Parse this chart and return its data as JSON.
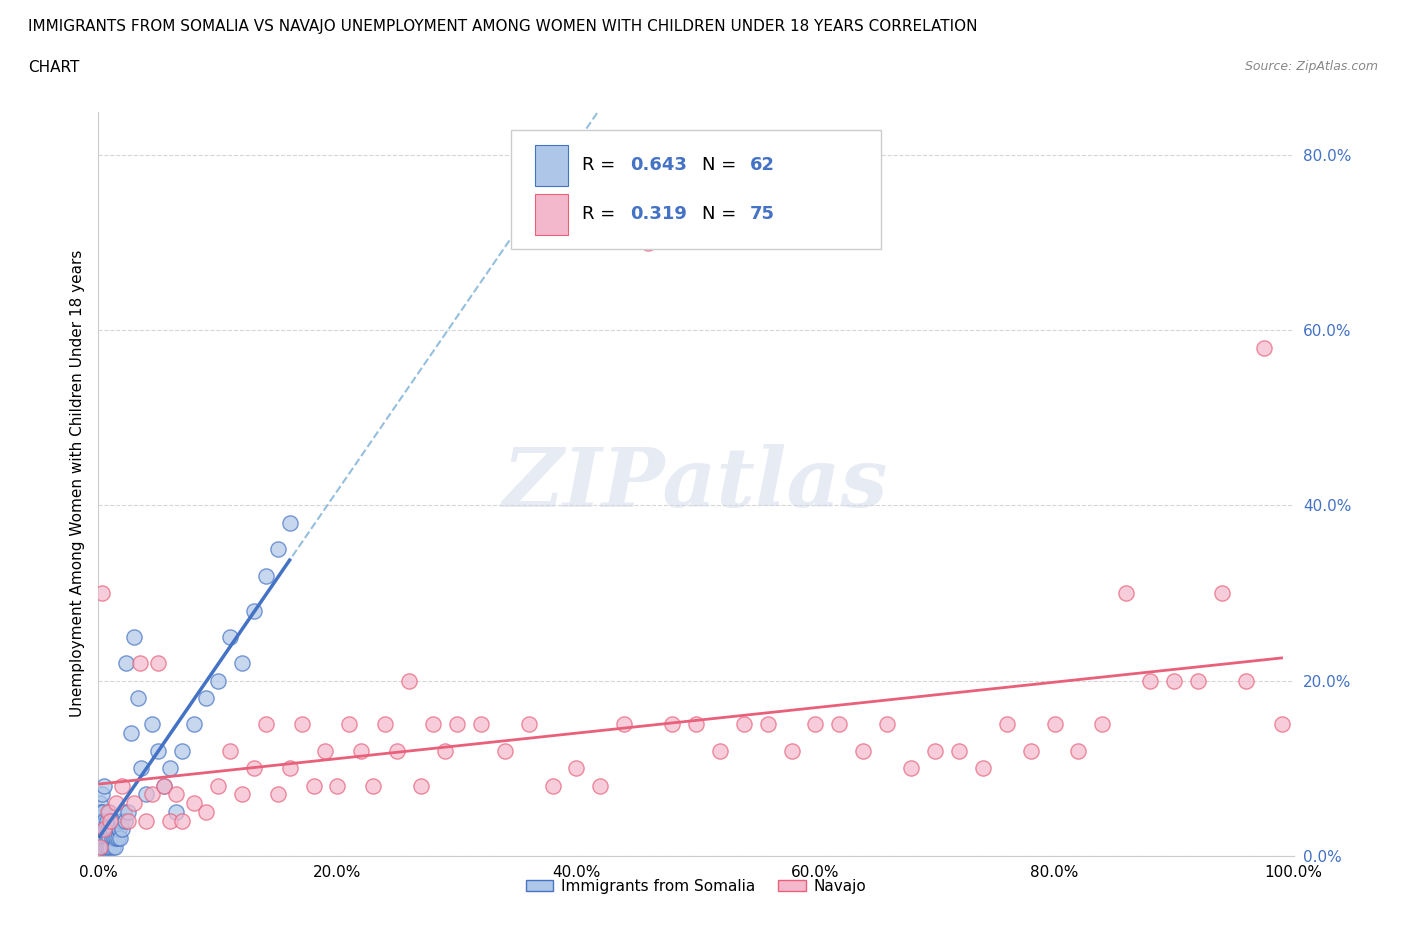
{
  "title_line1": "IMMIGRANTS FROM SOMALIA VS NAVAJO UNEMPLOYMENT AMONG WOMEN WITH CHILDREN UNDER 18 YEARS CORRELATION",
  "title_line2": "CHART",
  "source": "Source: ZipAtlas.com",
  "ylabel": "Unemployment Among Women with Children Under 18 years",
  "xlabel_somalia": "Immigrants from Somalia",
  "xlabel_navajo": "Navajo",
  "R_somalia": 0.643,
  "N_somalia": 62,
  "R_navajo": 0.319,
  "N_navajo": 75,
  "watermark": "ZIPatlas",
  "xlim": [
    0.0,
    1.0
  ],
  "ylim": [
    0.0,
    0.85
  ],
  "x_ticks": [
    0.0,
    0.2,
    0.4,
    0.6,
    0.8,
    1.0
  ],
  "x_tick_labels": [
    "0.0%",
    "20.0%",
    "40.0%",
    "60.0%",
    "80.0%",
    "100.0%"
  ],
  "y_ticks": [
    0.0,
    0.2,
    0.4,
    0.6,
    0.8
  ],
  "y_tick_labels": [
    "0.0%",
    "20.0%",
    "40.0%",
    "60.0%",
    "80.0%"
  ],
  "somalia_color": "#aec6e8",
  "somalia_line_color": "#4472c4",
  "navajo_color": "#f4b8cc",
  "navajo_line_color": "#e8607a",
  "dashed_line_color": "#7bafd4",
  "legend_r_color": "#4472c4",
  "background_color": "#ffffff",
  "grid_color": "#cccccc",
  "somalia_x": [
    0.001,
    0.001,
    0.001,
    0.002,
    0.002,
    0.002,
    0.003,
    0.003,
    0.003,
    0.004,
    0.004,
    0.004,
    0.005,
    0.005,
    0.005,
    0.006,
    0.006,
    0.007,
    0.007,
    0.008,
    0.008,
    0.009,
    0.009,
    0.01,
    0.01,
    0.011,
    0.011,
    0.012,
    0.012,
    0.013,
    0.013,
    0.014,
    0.015,
    0.016,
    0.017,
    0.018,
    0.019,
    0.02,
    0.021,
    0.022,
    0.023,
    0.025,
    0.027,
    0.03,
    0.033,
    0.036,
    0.04,
    0.045,
    0.05,
    0.055,
    0.06,
    0.065,
    0.07,
    0.08,
    0.09,
    0.1,
    0.11,
    0.12,
    0.13,
    0.14,
    0.15,
    0.16
  ],
  "somalia_y": [
    0.02,
    0.04,
    0.06,
    0.01,
    0.03,
    0.05,
    0.02,
    0.04,
    0.07,
    0.01,
    0.03,
    0.05,
    0.02,
    0.04,
    0.08,
    0.01,
    0.03,
    0.02,
    0.04,
    0.01,
    0.03,
    0.02,
    0.05,
    0.01,
    0.03,
    0.02,
    0.04,
    0.01,
    0.03,
    0.02,
    0.04,
    0.01,
    0.02,
    0.02,
    0.03,
    0.02,
    0.04,
    0.03,
    0.05,
    0.04,
    0.22,
    0.05,
    0.14,
    0.25,
    0.18,
    0.1,
    0.07,
    0.15,
    0.12,
    0.08,
    0.1,
    0.05,
    0.12,
    0.15,
    0.18,
    0.2,
    0.25,
    0.22,
    0.28,
    0.32,
    0.35,
    0.38
  ],
  "navajo_x": [
    0.001,
    0.003,
    0.005,
    0.008,
    0.01,
    0.015,
    0.02,
    0.025,
    0.03,
    0.035,
    0.04,
    0.045,
    0.05,
    0.055,
    0.06,
    0.065,
    0.07,
    0.08,
    0.09,
    0.1,
    0.11,
    0.12,
    0.13,
    0.14,
    0.15,
    0.16,
    0.17,
    0.18,
    0.19,
    0.2,
    0.21,
    0.22,
    0.23,
    0.24,
    0.25,
    0.26,
    0.27,
    0.28,
    0.29,
    0.3,
    0.32,
    0.34,
    0.36,
    0.38,
    0.4,
    0.42,
    0.44,
    0.46,
    0.48,
    0.5,
    0.52,
    0.54,
    0.56,
    0.58,
    0.6,
    0.62,
    0.64,
    0.66,
    0.68,
    0.7,
    0.72,
    0.74,
    0.76,
    0.78,
    0.8,
    0.82,
    0.84,
    0.86,
    0.88,
    0.9,
    0.92,
    0.94,
    0.96,
    0.975,
    0.99
  ],
  "navajo_y": [
    0.01,
    0.3,
    0.03,
    0.05,
    0.04,
    0.06,
    0.08,
    0.04,
    0.06,
    0.22,
    0.04,
    0.07,
    0.22,
    0.08,
    0.04,
    0.07,
    0.04,
    0.06,
    0.05,
    0.08,
    0.12,
    0.07,
    0.1,
    0.15,
    0.07,
    0.1,
    0.15,
    0.08,
    0.12,
    0.08,
    0.15,
    0.12,
    0.08,
    0.15,
    0.12,
    0.2,
    0.08,
    0.15,
    0.12,
    0.15,
    0.15,
    0.12,
    0.15,
    0.08,
    0.1,
    0.08,
    0.15,
    0.7,
    0.15,
    0.15,
    0.12,
    0.15,
    0.15,
    0.12,
    0.15,
    0.15,
    0.12,
    0.15,
    0.1,
    0.12,
    0.12,
    0.1,
    0.15,
    0.12,
    0.15,
    0.12,
    0.15,
    0.3,
    0.2,
    0.2,
    0.2,
    0.3,
    0.2,
    0.58,
    0.15
  ]
}
